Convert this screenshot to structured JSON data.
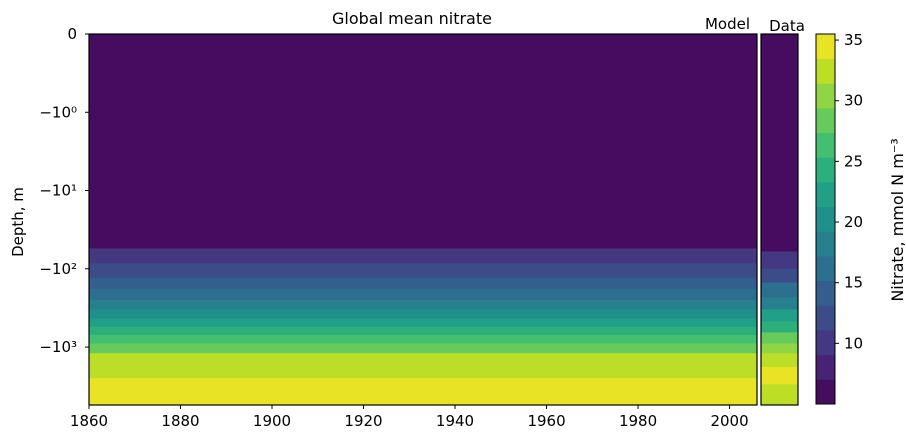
{
  "chart_data": {
    "type": "heatmap",
    "title": "Global mean nitrate",
    "xlabel": "",
    "ylabel": "Depth, m",
    "x_ticks": [
      1860,
      1880,
      1900,
      1920,
      1940,
      1960,
      1980,
      2000
    ],
    "xlim": [
      1860,
      2006
    ],
    "y_scale": "symlog",
    "y_ticks": [
      "0",
      "−10⁰",
      "−10¹",
      "−10²",
      "−10³"
    ],
    "panels": [
      {
        "name": "Model"
      },
      {
        "name": "Data"
      }
    ],
    "colorbar": {
      "label": "Nitrate, mmol N m⁻³",
      "ticks": [
        10,
        15,
        20,
        25,
        30,
        35
      ],
      "min": 5,
      "max": 35.5,
      "colormap": "viridis",
      "levels": 15
    },
    "model_profile": {
      "depth_bands": [
        {
          "top": 0,
          "bottom": 55,
          "value": 5.0
        },
        {
          "top": 55,
          "bottom": 85,
          "value": 9.5
        },
        {
          "top": 85,
          "bottom": 130,
          "value": 11.5
        },
        {
          "top": 130,
          "bottom": 180,
          "value": 13.5
        },
        {
          "top": 180,
          "bottom": 250,
          "value": 15.5
        },
        {
          "top": 250,
          "bottom": 330,
          "value": 17.5
        },
        {
          "top": 330,
          "bottom": 430,
          "value": 19.5
        },
        {
          "top": 430,
          "bottom": 550,
          "value": 21.5
        },
        {
          "top": 550,
          "bottom": 700,
          "value": 23.5
        },
        {
          "top": 700,
          "bottom": 900,
          "value": 25.5
        },
        {
          "top": 900,
          "bottom": 1200,
          "value": 27.5
        },
        {
          "top": 1200,
          "bottom": 2500,
          "value": 31.5
        },
        {
          "top": 2500,
          "bottom": 5500,
          "value": 34.5
        }
      ]
    },
    "data_profile": {
      "depth_bands": [
        {
          "top": 0,
          "bottom": 60,
          "value": 5.0
        },
        {
          "top": 60,
          "bottom": 100,
          "value": 9.5
        },
        {
          "top": 100,
          "bottom": 150,
          "value": 12.5
        },
        {
          "top": 150,
          "bottom": 230,
          "value": 15.5
        },
        {
          "top": 230,
          "bottom": 330,
          "value": 18.5
        },
        {
          "top": 330,
          "bottom": 470,
          "value": 21.5
        },
        {
          "top": 470,
          "bottom": 650,
          "value": 24.5
        },
        {
          "top": 650,
          "bottom": 900,
          "value": 27.5
        },
        {
          "top": 900,
          "bottom": 1200,
          "value": 30.5
        },
        {
          "top": 1200,
          "bottom": 1800,
          "value": 33.0
        },
        {
          "top": 1800,
          "bottom": 3000,
          "value": 35.0
        },
        {
          "top": 3000,
          "bottom": 5500,
          "value": 31.5
        }
      ]
    }
  }
}
